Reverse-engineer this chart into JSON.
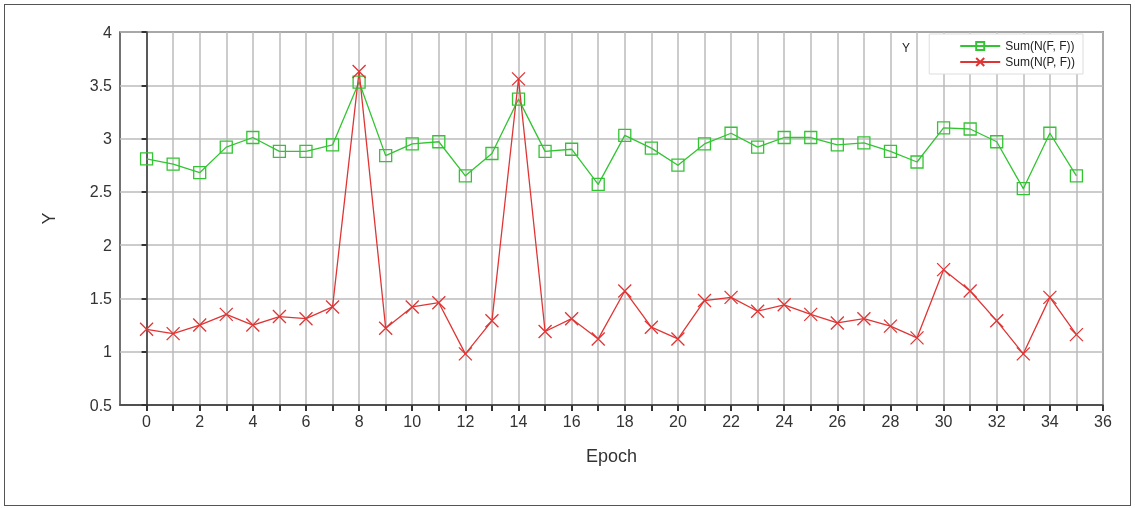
{
  "chart_data": {
    "type": "line",
    "xlabel": "Epoch",
    "ylabel": "Y",
    "legend_title": "Y",
    "legend": "top right",
    "grid": true,
    "x": [
      0,
      1,
      2,
      3,
      4,
      5,
      6,
      7,
      8,
      9,
      10,
      11,
      12,
      13,
      14,
      15,
      16,
      17,
      18,
      19,
      20,
      21,
      22,
      23,
      24,
      25,
      26,
      27,
      28,
      29,
      30,
      31,
      32,
      33,
      34,
      35
    ],
    "xlim": [
      -1,
      36
    ],
    "xticks": [
      0,
      {
        "value": 1,
        "label": null
      },
      2,
      {
        "value": 3,
        "label": null
      },
      4,
      {
        "value": 5,
        "label": null
      },
      6,
      {
        "value": 7,
        "label": null
      },
      8,
      {
        "value": 9,
        "label": null
      },
      10,
      {
        "value": 11,
        "label": null
      },
      12,
      {
        "value": 13,
        "label": null
      },
      14,
      {
        "value": 15,
        "label": null
      },
      16,
      {
        "value": 17,
        "label": null
      },
      18,
      {
        "value": 19,
        "label": null
      },
      20,
      {
        "value": 21,
        "label": null
      },
      22,
      {
        "value": 23,
        "label": null
      },
      24,
      {
        "value": 25,
        "label": null
      },
      26,
      {
        "value": 27,
        "label": null
      },
      28,
      {
        "value": 29,
        "label": null
      },
      30,
      {
        "value": 31,
        "label": null
      },
      32,
      {
        "value": 33,
        "label": null
      },
      34,
      {
        "value": 35,
        "label": null
      },
      36
    ],
    "ylim": [
      0.5,
      4
    ],
    "yticks": [
      0.5,
      1,
      1.5,
      2,
      2.5,
      3,
      3.5,
      4
    ],
    "series": [
      {
        "name": "Sum(N(F, F))",
        "color": "#33c433",
        "marker": "square",
        "values": [
          2.81,
          2.76,
          2.68,
          2.92,
          3.01,
          2.88,
          2.88,
          2.94,
          3.53,
          2.84,
          2.95,
          2.97,
          2.65,
          2.86,
          3.37,
          2.88,
          2.9,
          2.57,
          3.03,
          2.91,
          2.75,
          2.95,
          3.05,
          2.92,
          3.01,
          3.01,
          2.94,
          2.96,
          2.88,
          2.78,
          3.1,
          3.09,
          2.97,
          2.53,
          3.05,
          2.65
        ]
      },
      {
        "name": "Sum(N(P, F))",
        "color": "#e03535",
        "marker": "cross",
        "values": [
          1.21,
          1.17,
          1.25,
          1.35,
          1.25,
          1.33,
          1.31,
          1.42,
          3.63,
          1.22,
          1.42,
          1.46,
          0.98,
          1.29,
          3.56,
          1.19,
          1.31,
          1.12,
          1.57,
          1.23,
          1.12,
          1.48,
          1.51,
          1.38,
          1.44,
          1.35,
          1.27,
          1.31,
          1.24,
          1.13,
          1.77,
          1.57,
          1.29,
          0.98,
          1.51,
          1.16
        ]
      }
    ]
  }
}
